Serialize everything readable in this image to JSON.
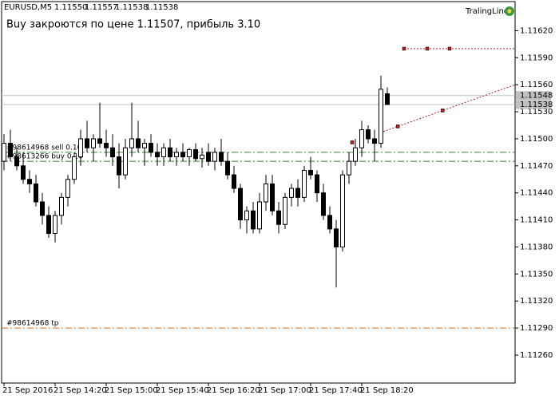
{
  "chart_data": {
    "type": "candlestick",
    "symbol": "EURUSD,M5",
    "header_prices": [
      {
        "value": 1.1155,
        "label": "1.11550"
      },
      {
        "value": 1.11557,
        "label": "1.11557"
      },
      {
        "value": 1.11538,
        "label": "1.11538"
      },
      {
        "value": 1.11538,
        "label": "1.11538"
      }
    ],
    "comment": "Buy закроются по цене 1.11507, прибыль  3.10",
    "indicator": "TralingLine",
    "categories": [
      "21 Sep 2016",
      null,
      null,
      null,
      null,
      null,
      null,
      null,
      "21 Sep 14:20",
      null,
      null,
      null,
      null,
      null,
      null,
      null,
      "21 Sep 15:00",
      null,
      null,
      null,
      null,
      null,
      null,
      null,
      "21 Sep 15:40",
      null,
      null,
      null,
      null,
      null,
      null,
      null,
      "21 Sep 16:20",
      null,
      null,
      null,
      null,
      null,
      null,
      null,
      "21 Sep 17:00",
      null,
      null,
      null,
      null,
      null,
      null,
      null,
      "21 Sep 17:40",
      null,
      null,
      null,
      null,
      null,
      null,
      null,
      "21 Sep 18:20",
      null,
      null,
      null,
      null
    ],
    "ohlc": [
      [
        1.11475,
        1.11505,
        1.11465,
        1.11495
      ],
      [
        1.11495,
        1.1151,
        1.11475,
        1.1148
      ],
      [
        1.1148,
        1.1149,
        1.11465,
        1.1147
      ],
      [
        1.1147,
        1.11485,
        1.1145,
        1.11455
      ],
      [
        1.11455,
        1.11465,
        1.1144,
        1.1145
      ],
      [
        1.1145,
        1.1146,
        1.11425,
        1.1143
      ],
      [
        1.1143,
        1.1144,
        1.11405,
        1.11415
      ],
      [
        1.11415,
        1.11425,
        1.1139,
        1.11395
      ],
      [
        1.11395,
        1.1142,
        1.11385,
        1.11415
      ],
      [
        1.11415,
        1.1144,
        1.11405,
        1.11435
      ],
      [
        1.11435,
        1.1146,
        1.11425,
        1.11455
      ],
      [
        1.11455,
        1.11485,
        1.1145,
        1.1148
      ],
      [
        1.1148,
        1.1151,
        1.1147,
        1.115
      ],
      [
        1.115,
        1.1152,
        1.11485,
        1.1149
      ],
      [
        1.1149,
        1.11505,
        1.11475,
        1.115
      ],
      [
        1.115,
        1.1154,
        1.1149,
        1.11495
      ],
      [
        1.11495,
        1.1151,
        1.1148,
        1.1149
      ],
      [
        1.1149,
        1.11505,
        1.1147,
        1.1148
      ],
      [
        1.1148,
        1.11495,
        1.11445,
        1.1146
      ],
      [
        1.1146,
        1.115,
        1.11455,
        1.1149
      ],
      [
        1.1149,
        1.1154,
        1.1148,
        1.115
      ],
      [
        1.115,
        1.1152,
        1.11485,
        1.1149
      ],
      [
        1.1149,
        1.115,
        1.1147,
        1.11495
      ],
      [
        1.11495,
        1.11505,
        1.1148,
        1.11485
      ],
      [
        1.11485,
        1.11495,
        1.1147,
        1.1148
      ],
      [
        1.1148,
        1.11495,
        1.1147,
        1.1149
      ],
      [
        1.1149,
        1.115,
        1.11475,
        1.1148
      ],
      [
        1.1148,
        1.1149,
        1.1147,
        1.11485
      ],
      [
        1.11485,
        1.11495,
        1.11475,
        1.1148
      ],
      [
        1.1148,
        1.1149,
        1.1147,
        1.11488
      ],
      [
        1.11488,
        1.11495,
        1.11475,
        1.11478
      ],
      [
        1.11478,
        1.1149,
        1.11468,
        1.11482
      ],
      [
        1.11485,
        1.11495,
        1.1147,
        1.11475
      ],
      [
        1.11475,
        1.1149,
        1.11465,
        1.11485
      ],
      [
        1.11485,
        1.115,
        1.1147,
        1.11475
      ],
      [
        1.11475,
        1.11485,
        1.11455,
        1.1146
      ],
      [
        1.1146,
        1.1147,
        1.1144,
        1.11445
      ],
      [
        1.11445,
        1.1145,
        1.114,
        1.1141
      ],
      [
        1.1141,
        1.11425,
        1.11395,
        1.1142
      ],
      [
        1.1142,
        1.1143,
        1.11395,
        1.114
      ],
      [
        1.114,
        1.1144,
        1.11395,
        1.1143
      ],
      [
        1.1143,
        1.1146,
        1.1142,
        1.1145
      ],
      [
        1.1145,
        1.1146,
        1.11415,
        1.1142
      ],
      [
        1.1142,
        1.1143,
        1.11395,
        1.11405
      ],
      [
        1.11405,
        1.1144,
        1.114,
        1.11435
      ],
      [
        1.11435,
        1.1145,
        1.11425,
        1.11445
      ],
      [
        1.11445,
        1.11455,
        1.11425,
        1.11435
      ],
      [
        1.11435,
        1.1147,
        1.1143,
        1.11465
      ],
      [
        1.11465,
        1.1148,
        1.11455,
        1.1146
      ],
      [
        1.1146,
        1.11465,
        1.1143,
        1.1144
      ],
      [
        1.1144,
        1.1145,
        1.1141,
        1.11415
      ],
      [
        1.11415,
        1.11425,
        1.11395,
        1.114
      ],
      [
        1.114,
        1.1141,
        1.11335,
        1.1138
      ],
      [
        1.1138,
        1.11465,
        1.11375,
        1.1146
      ],
      [
        1.1146,
        1.11485,
        1.1145,
        1.11475
      ],
      [
        1.11475,
        1.115,
        1.1147,
        1.1149
      ],
      [
        1.1149,
        1.1152,
        1.1148,
        1.1151
      ],
      [
        1.1151,
        1.11515,
        1.11495,
        1.115
      ],
      [
        1.115,
        1.1151,
        1.11475,
        1.11495
      ],
      [
        1.11495,
        1.1157,
        1.1149,
        1.11555
      ],
      [
        1.1155,
        1.11557,
        1.11538,
        1.11538
      ]
    ],
    "ylim": [
      1.11229,
      1.11654
    ],
    "yticks": [
      {
        "value": 1.1162,
        "label": "1.11620"
      },
      {
        "value": 1.1159,
        "label": "1.11590"
      },
      {
        "value": 1.1156,
        "label": "1.11560"
      },
      {
        "value": 1.1153,
        "label": "1.11530"
      },
      {
        "value": 1.115,
        "label": "1.11500"
      },
      {
        "value": 1.1147,
        "label": "1.11470"
      },
      {
        "value": 1.1144,
        "label": "1.11440"
      },
      {
        "value": 1.1141,
        "label": "1.11410"
      },
      {
        "value": 1.1138,
        "label": "1.11380"
      },
      {
        "value": 1.1135,
        "label": "1.11350"
      },
      {
        "value": 1.1132,
        "label": "1.11320"
      },
      {
        "value": 1.1129,
        "label": "1.11290"
      },
      {
        "value": 1.1126,
        "label": "1.11260"
      }
    ],
    "price_lines": [
      {
        "value": 1.11548,
        "label": "1.11548"
      },
      {
        "value": 1.11538,
        "label": "1.11538"
      }
    ],
    "levels": [
      {
        "name": "#98614968 sell 0.10",
        "value": 1.11485,
        "color": "#2e8b2e"
      },
      {
        "name": "#98613266 buy 0.10",
        "value": 1.11475,
        "color": "#2e8b2e"
      },
      {
        "name": "#98614968 tp",
        "value": 1.1129,
        "color": "#d2691e"
      }
    ],
    "trend_line": {
      "values": [
        1.11508,
        1.1156
      ],
      "color": "#b22222"
    },
    "stop_line": {
      "value": 1.116,
      "color": "#b22222"
    }
  }
}
